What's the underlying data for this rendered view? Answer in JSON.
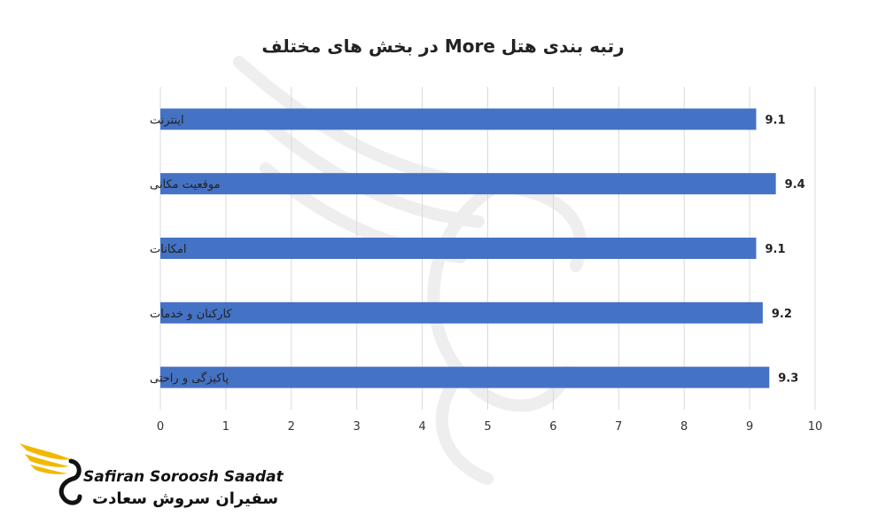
{
  "chart_data": {
    "type": "bar",
    "orientation": "horizontal",
    "title": "رتبه بندی هتل More در بخش های مختلف",
    "categories": [
      "اینترنت",
      "موقعیت مکانی",
      "امکانات",
      "کارکنان و خدمات",
      "پاکیزگی و راحتی"
    ],
    "values": [
      9.1,
      9.4,
      9.1,
      9.2,
      9.3
    ],
    "data_labels": [
      "9.1",
      "9.4",
      "9.1",
      "9.2",
      "9.3"
    ],
    "xlim": [
      0,
      10
    ],
    "xticks": [
      "0",
      "1",
      "2",
      "3",
      "4",
      "5",
      "6",
      "7",
      "8",
      "9",
      "10"
    ],
    "grid": "vertical",
    "bar_color": "#4472C4"
  },
  "logo": {
    "name_en": "Safiran Soroosh Saadat",
    "name_fa": "سفیران سروش سعادت",
    "accent_color": "#F2B800"
  }
}
